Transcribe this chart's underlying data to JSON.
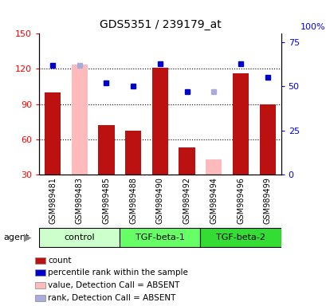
{
  "title": "GDS5351 / 239179_at",
  "samples": [
    "GSM989481",
    "GSM989483",
    "GSM989485",
    "GSM989488",
    "GSM989490",
    "GSM989492",
    "GSM989494",
    "GSM989496",
    "GSM989499"
  ],
  "groups": [
    {
      "label": "control",
      "samples": [
        0,
        1,
        2
      ],
      "color": "#ccffcc"
    },
    {
      "label": "TGF-beta-1",
      "samples": [
        3,
        4,
        5
      ],
      "color": "#66ff66"
    },
    {
      "label": "TGF-beta-2",
      "samples": [
        6,
        7,
        8
      ],
      "color": "#33dd33"
    }
  ],
  "count_values": [
    100,
    null,
    72,
    67,
    121,
    53,
    null,
    116,
    90
  ],
  "count_absent_values": [
    null,
    124,
    null,
    null,
    null,
    null,
    43,
    null,
    null
  ],
  "percentile_rank": [
    62,
    null,
    52,
    50,
    63,
    47,
    null,
    63,
    55
  ],
  "percentile_rank_absent": [
    null,
    62,
    null,
    null,
    null,
    null,
    47,
    null,
    null
  ],
  "ylim_left": [
    30,
    150
  ],
  "ylim_right": [
    0,
    80
  ],
  "yticks_left": [
    30,
    60,
    90,
    120,
    150
  ],
  "yticks_right": [
    0,
    25,
    50,
    75
  ],
  "bar_color": "#bb1111",
  "bar_absent_color": "#ffbbbb",
  "dot_color": "#0000cc",
  "dot_absent_color": "#aaaadd",
  "bg_color": "#cccccc",
  "plot_bg": "#ffffff",
  "legend_items": [
    {
      "label": "count",
      "color": "#bb1111"
    },
    {
      "label": "percentile rank within the sample",
      "color": "#0000cc"
    },
    {
      "label": "value, Detection Call = ABSENT",
      "color": "#ffbbbb"
    },
    {
      "label": "rank, Detection Call = ABSENT",
      "color": "#aaaadd"
    }
  ]
}
